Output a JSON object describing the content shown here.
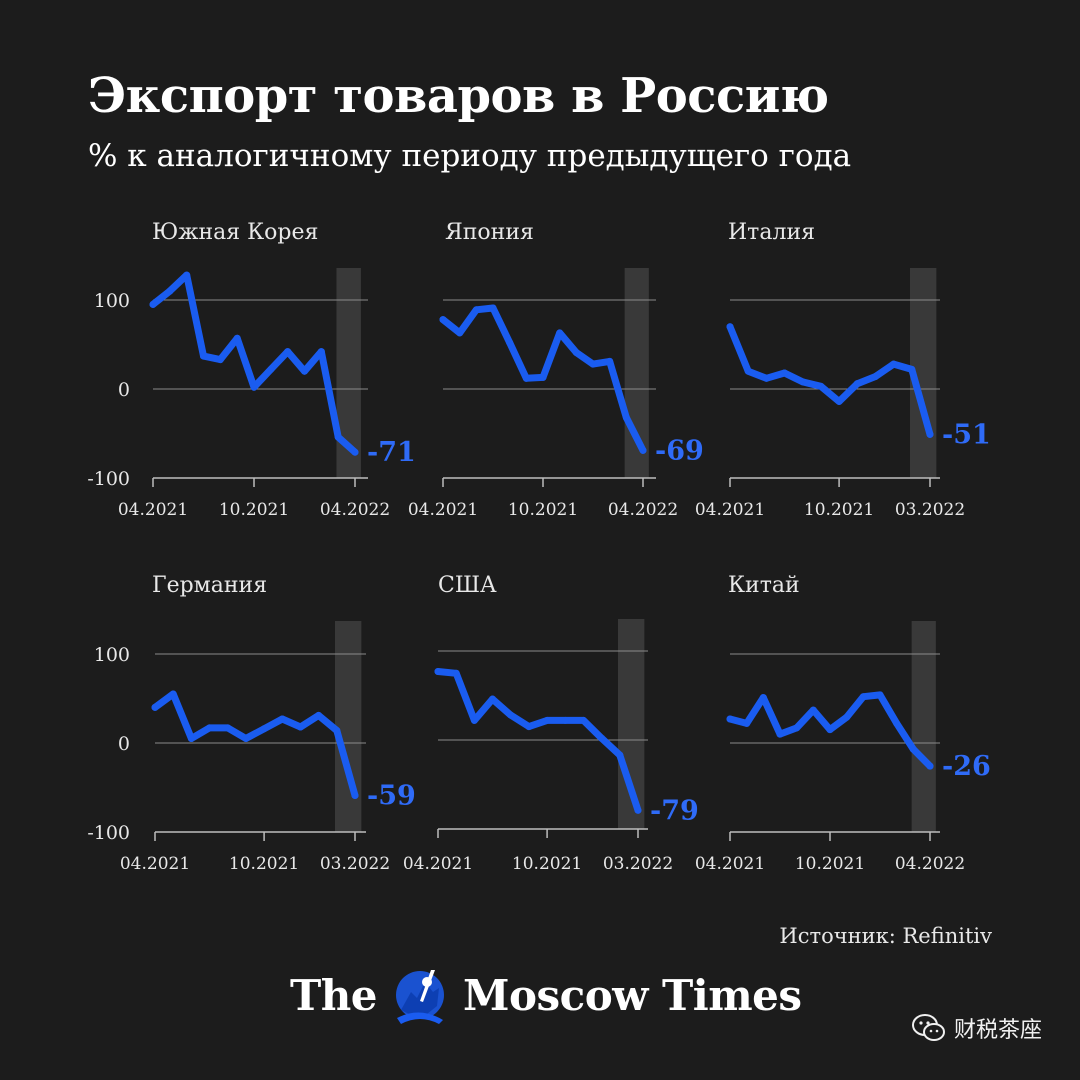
{
  "title": "Экспорт товаров в Россию",
  "subtitle": "% к аналогичному периоду предыдущего года",
  "source": "Источник: Refinitiv",
  "brand": {
    "name_part1": "The",
    "name_part2": "Moscow Times"
  },
  "watermark": {
    "text": "财税茶座",
    "icon": "wechat-icon"
  },
  "colors": {
    "line": "#1a5cf0",
    "label": "#2f6bf7",
    "background": "#1c1c1c",
    "highlight": "#393939",
    "grid": "#8a8a8a"
  },
  "chart_data": [
    {
      "type": "line",
      "title": "Южная Корея",
      "x_ticks": [
        "04.2021",
        "10.2021",
        "04.2022"
      ],
      "x": [
        "04.2021",
        "05.2021",
        "06.2021",
        "07.2021",
        "08.2021",
        "09.2021",
        "10.2021",
        "11.2021",
        "12.2021",
        "01.2022",
        "02.2022",
        "03.2022",
        "04.2022"
      ],
      "y": [
        95,
        110,
        128,
        37,
        33,
        57,
        2,
        22,
        42,
        20,
        42,
        -54,
        -71
      ],
      "last_label": "-71",
      "y_ticks": [
        "100",
        "0",
        "-100"
      ],
      "ylim": [
        -100,
        140
      ],
      "highlight": [
        "03.2022",
        "04.2022"
      ]
    },
    {
      "type": "line",
      "title": "Япония",
      "x_ticks": [
        "04.2021",
        "10.2021",
        "04.2022"
      ],
      "x": [
        "04.2021",
        "05.2021",
        "06.2021",
        "07.2021",
        "08.2021",
        "09.2021",
        "10.2021",
        "11.2021",
        "12.2021",
        "01.2022",
        "02.2022",
        "03.2022",
        "04.2022"
      ],
      "y": [
        78,
        63,
        89,
        91,
        52,
        12,
        13,
        63,
        41,
        28,
        31,
        -32,
        -69
      ],
      "last_label": "-69",
      "y_ticks": [
        "100",
        "0",
        "-100"
      ],
      "ylim": [
        -100,
        140
      ],
      "highlight": [
        "03.2022",
        "04.2022"
      ]
    },
    {
      "type": "line",
      "title": "Италия",
      "x_ticks": [
        "04.2021",
        "10.2021",
        "03.2022"
      ],
      "x": [
        "04.2021",
        "05.2021",
        "06.2021",
        "07.2021",
        "08.2021",
        "09.2021",
        "10.2021",
        "11.2021",
        "12.2021",
        "01.2022",
        "02.2022",
        "03.2022"
      ],
      "y": [
        70,
        20,
        12,
        18,
        8,
        3,
        -14,
        6,
        14,
        28,
        22,
        -51
      ],
      "last_label": "-51",
      "y_ticks": [
        "100",
        "0",
        "-100"
      ],
      "ylim": [
        -100,
        140
      ],
      "highlight": [
        "02.2022",
        "03.2022"
      ]
    },
    {
      "type": "line",
      "title": "Германия",
      "x_ticks": [
        "04.2021",
        "10.2021",
        "03.2022"
      ],
      "x": [
        "04.2021",
        "05.2021",
        "06.2021",
        "07.2021",
        "08.2021",
        "09.2021",
        "10.2021",
        "11.2021",
        "12.2021",
        "01.2022",
        "02.2022",
        "03.2022"
      ],
      "y": [
        40,
        55,
        5,
        17,
        17,
        5,
        16,
        27,
        18,
        31,
        14,
        -59
      ],
      "last_label": "-59",
      "y_ticks": [
        "100",
        "0",
        "-100"
      ],
      "ylim": [
        -100,
        140
      ],
      "highlight": [
        "02.2022",
        "03.2022"
      ]
    },
    {
      "type": "line",
      "title": "США",
      "x_ticks": [
        "04.2021",
        "10.2021",
        "03.2022"
      ],
      "x": [
        "04.2021",
        "05.2021",
        "06.2021",
        "07.2021",
        "08.2021",
        "09.2021",
        "10.2021",
        "11.2021",
        "12.2021",
        "01.2022",
        "02.2022",
        "03.2022"
      ],
      "y": [
        77,
        75,
        22,
        46,
        28,
        15,
        22,
        22,
        22,
        2,
        -17,
        -79
      ],
      "last_label": "-79",
      "y_ticks": [
        "100",
        "0",
        "-100"
      ],
      "ylim": [
        -100,
        140
      ],
      "highlight": [
        "02.2022",
        "03.2022"
      ]
    },
    {
      "type": "line",
      "title": "Китай",
      "x_ticks": [
        "04.2021",
        "10.2021",
        "04.2022"
      ],
      "x": [
        "04.2021",
        "05.2021",
        "06.2021",
        "07.2021",
        "08.2021",
        "09.2021",
        "10.2021",
        "11.2021",
        "12.2021",
        "01.2022",
        "02.2022",
        "03.2022",
        "04.2022"
      ],
      "y": [
        27,
        22,
        51,
        10,
        17,
        37,
        15,
        29,
        52,
        54,
        22,
        -7,
        -26
      ],
      "last_label": "-26",
      "y_ticks": [
        "100",
        "0",
        "-100"
      ],
      "ylim": [
        -100,
        140
      ],
      "highlight": [
        "03.2022",
        "04.2022"
      ]
    }
  ]
}
